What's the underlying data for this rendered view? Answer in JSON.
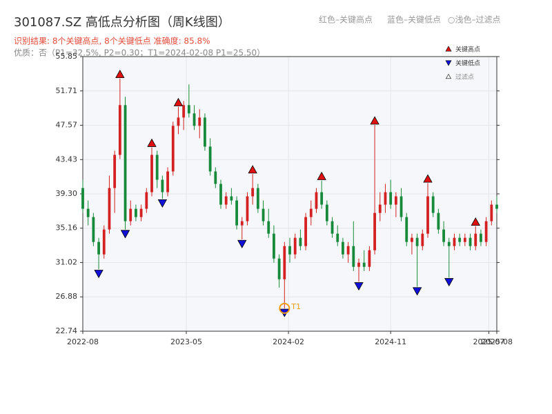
{
  "chart_data": {
    "type": "candlestick",
    "title": "301087.SZ 高低点分析图（周K线图）",
    "subtitle": "识别结果: 8个关键高点, 8个关键低点  准确度: 85.8%",
    "note": "优质：否（P1=32.5%, P2=0.30；T1=2024-02-08 P1=25.50）",
    "header_legend": [
      "红色–关键高点",
      "蓝色–关键低点",
      "○浅色–过滤点"
    ],
    "up_color": "#d42020",
    "down_color": "#168a3a",
    "x": [
      0,
      2,
      4,
      6,
      8,
      10,
      12,
      14,
      16,
      18,
      20,
      22,
      24,
      26,
      28,
      30,
      32,
      34,
      36,
      38,
      40,
      42,
      44,
      46,
      48,
      50,
      52,
      54,
      56,
      58,
      60,
      62,
      64,
      66,
      68,
      70,
      72,
      74,
      76,
      78,
      80,
      82,
      84,
      86,
      88,
      90,
      92,
      94,
      96,
      98,
      100,
      102,
      104,
      106,
      108,
      110,
      112,
      114,
      116,
      118,
      120,
      122,
      124,
      126,
      128,
      130,
      132,
      134,
      136,
      138,
      140,
      142,
      144,
      146,
      148,
      150,
      152,
      154,
      156
    ],
    "open": [
      40,
      37.5,
      36.5,
      33.5,
      32,
      35,
      40,
      44,
      50,
      36,
      37.5,
      36.5,
      37.5,
      39.5,
      44,
      41,
      39.5,
      42,
      47.5,
      48.5,
      50,
      49,
      47.5,
      48.5,
      45,
      42,
      40.5,
      38,
      39,
      38.5,
      35.5,
      36,
      39,
      40,
      37.5,
      36,
      34.5,
      31.5,
      29,
      33,
      32,
      34,
      33,
      36.5,
      37.5,
      39.5,
      38,
      36,
      34.5,
      33.5,
      32,
      33,
      30.5,
      31,
      30.5,
      32.5,
      37,
      38,
      39.5,
      38,
      39,
      36.5,
      33.5,
      34,
      33,
      34.5,
      39,
      37,
      35,
      33.5,
      33,
      34,
      33.5,
      34,
      33,
      34.5,
      33.5,
      36,
      38
    ],
    "high": [
      41,
      38.5,
      37,
      34,
      35.5,
      41.5,
      44.5,
      53.2,
      51,
      38.5,
      38,
      38,
      40,
      44.9,
      44.5,
      41.5,
      42.5,
      48,
      49.8,
      50.5,
      52.5,
      50,
      49.5,
      49,
      46,
      42.5,
      41,
      39.5,
      40,
      39,
      36.5,
      39.5,
      41.7,
      40.5,
      38.5,
      37.5,
      35.5,
      32,
      33.5,
      34,
      34.5,
      35,
      37,
      38.5,
      40,
      40.9,
      38.5,
      36.5,
      35.5,
      34,
      33.5,
      36,
      31.5,
      32.5,
      33,
      47.6,
      39.5,
      40.5,
      41,
      39.5,
      40,
      37,
      34.5,
      34.5,
      35,
      40.6,
      39.5,
      37.5,
      36,
      34,
      34.5,
      34.5,
      34.5,
      34.5,
      35.4,
      35,
      36.5,
      38.5,
      39
    ],
    "low": [
      37,
      35.5,
      33,
      30.2,
      31.5,
      34.5,
      37,
      43.5,
      35,
      35.5,
      36,
      36,
      37,
      39,
      40,
      38.7,
      39,
      41.5,
      46.5,
      47,
      48.5,
      47,
      46,
      44.5,
      41.5,
      40,
      37.5,
      37.5,
      38,
      35,
      33.8,
      35.5,
      38,
      37,
      35.5,
      34,
      31,
      28,
      25.5,
      31,
      31.5,
      32.5,
      32.5,
      35.5,
      37,
      37.5,
      35.5,
      34,
      33,
      31.5,
      31,
      30,
      28.7,
      30,
      30,
      32,
      36,
      37,
      37.5,
      36.5,
      36,
      33,
      32,
      28.1,
      32.5,
      34,
      36.5,
      34.5,
      33,
      29.2,
      32.5,
      33,
      33,
      32.5,
      32.5,
      33,
      33,
      35.5,
      37
    ],
    "close": [
      37.5,
      36.5,
      33.5,
      32,
      35,
      40,
      44,
      50,
      36,
      37.5,
      36.5,
      37.5,
      39.5,
      44,
      41,
      39.5,
      42,
      47.5,
      48.5,
      50,
      49,
      47.5,
      48.5,
      45,
      42,
      40.5,
      38,
      39,
      38.5,
      35.5,
      36,
      39,
      40,
      37.5,
      36,
      34.5,
      31.5,
      29,
      33,
      32,
      34,
      33,
      36.5,
      37.5,
      39.5,
      38,
      36,
      34.5,
      33.5,
      32,
      33,
      30.5,
      31,
      30.5,
      32.5,
      37,
      38,
      39.5,
      38,
      39,
      36.5,
      33.5,
      34,
      33,
      34.5,
      39,
      37,
      35,
      33.5,
      33,
      34,
      33.5,
      34,
      33,
      34.5,
      33.5,
      36,
      38,
      37.5
    ],
    "key_highs": {
      "name": "关键高点",
      "color": "#e01010",
      "x": [
        14,
        26,
        36,
        64,
        90,
        110,
        130,
        148
      ],
      "values": [
        53.2,
        44.9,
        49.8,
        41.7,
        40.9,
        47.6,
        40.6,
        35.4
      ]
    },
    "key_lows": {
      "name": "关键低点",
      "color": "#1010d8",
      "x": [
        6,
        16,
        30,
        60,
        76,
        104,
        126,
        138
      ],
      "values": [
        30.2,
        35,
        38.7,
        33.8,
        25.5,
        28.7,
        28.1,
        29.2
      ]
    },
    "filtered_name": "过滤点",
    "annotation": {
      "text": "T1",
      "x": 76,
      "value": 25.5,
      "color": "#f39c12"
    },
    "xlim": [
      0,
      156
    ],
    "xticks": [
      {
        "value": 0,
        "label": "2022-08"
      },
      {
        "value": 39,
        "label": "2023-05"
      },
      {
        "value": 77.5,
        "label": "2024-02"
      },
      {
        "value": 116,
        "label": "2024-11"
      },
      {
        "value": 153,
        "label": "2025-07"
      },
      {
        "value": 156,
        "label": "2025-08"
      }
    ],
    "ylim": [
      22.74,
      55.85
    ],
    "yticks": [
      22.74,
      26.88,
      31.02,
      35.16,
      {
        "value": 39.3,
        "label": "39.30"
      },
      43.43,
      47.57,
      51.71,
      55.85
    ],
    "grid": true
  }
}
